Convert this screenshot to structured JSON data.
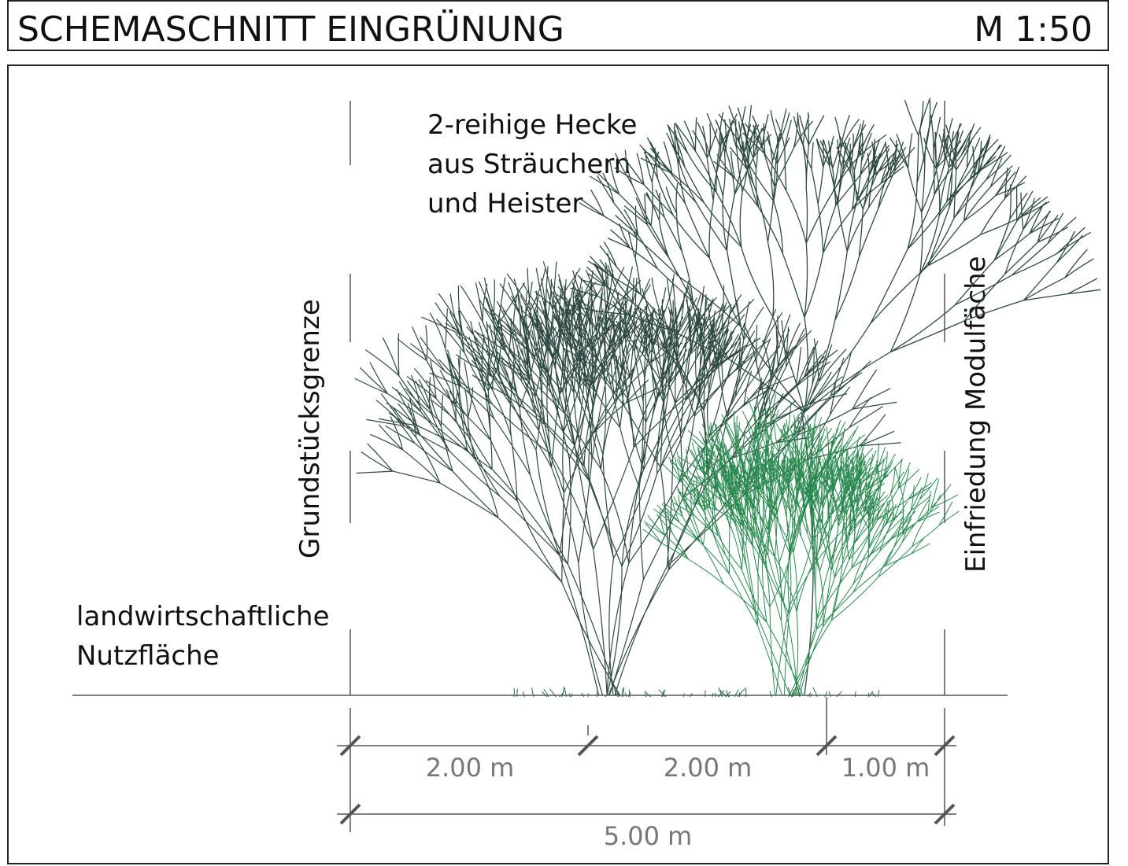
{
  "header": {
    "title": "SCHEMASCHNITT EINGRÜNUNG",
    "scale": "M 1:50"
  },
  "labels": {
    "hedge": [
      "2-reihige Hecke",
      "aus Sträuchern",
      "und Heister"
    ],
    "left_area": [
      "landwirtschaftliche",
      "Nutzfläche"
    ],
    "property_line": "Grundstücksgrenze",
    "fence": "Einfriedung Modulfäche"
  },
  "dimensions": {
    "segments": [
      "2.00 m",
      "2.00 m",
      "1.00 m"
    ],
    "total": "5.00 m"
  }
}
